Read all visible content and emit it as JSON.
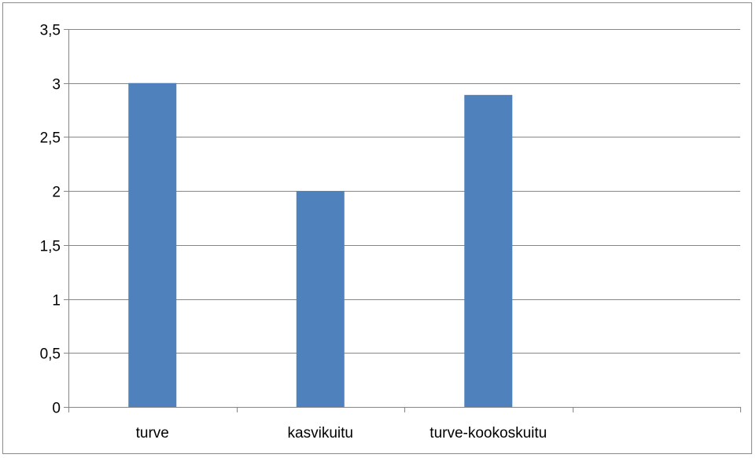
{
  "chart_data": {
    "type": "bar",
    "title": "",
    "xlabel": "",
    "ylabel": "",
    "categories": [
      "turve",
      "kasvikuitu",
      "turve-kookoskuitu",
      ""
    ],
    "values": [
      3.0,
      2.0,
      2.89,
      null
    ],
    "ylim": [
      0,
      3.5
    ],
    "yticks": [
      0,
      0.5,
      1,
      1.5,
      2,
      2.5,
      3,
      3.5
    ],
    "ytick_labels": [
      "0",
      "0,5",
      "1",
      "1,5",
      "2",
      "2,5",
      "3",
      "3,5"
    ],
    "grid": true,
    "legend": "none",
    "colors": {
      "bar": "#4f81bd",
      "grid": "#868686",
      "axis": "#868686"
    }
  }
}
